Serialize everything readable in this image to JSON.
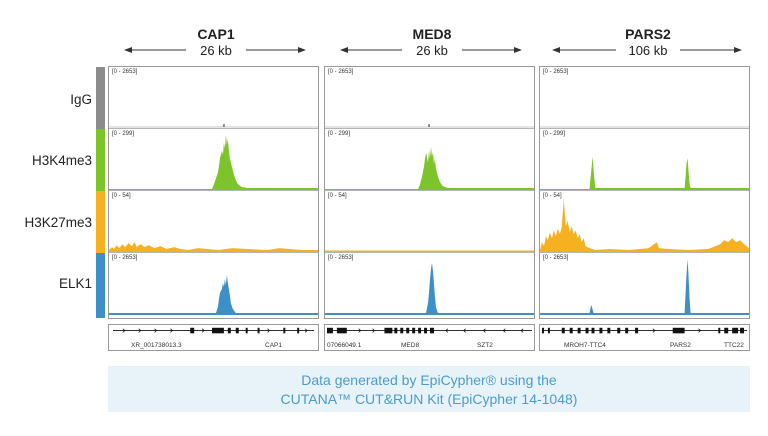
{
  "columns": [
    {
      "gene": "CAP1",
      "size": "26 kb",
      "genes_track": {
        "left_label": "XR_001738013.3",
        "right_label": "CAP1"
      }
    },
    {
      "gene": "MED8",
      "size": "26 kb",
      "genes_track": {
        "left_label": "07066049.1",
        "mid_label": "MED8",
        "right_label": "SZT2"
      }
    },
    {
      "gene": "PARS2",
      "size": "106 kb",
      "genes_track": {
        "left_label": "MROH7-TTC4",
        "mid_label": "PARS2",
        "right_label": "TTC22"
      }
    }
  ],
  "tracks": [
    {
      "label": "IgG",
      "color": "#8c8c8c",
      "scale": "[0 - 2653]"
    },
    {
      "label": "H3K4me3",
      "color": "#7dc42b",
      "scale": "[0 - 299]"
    },
    {
      "label": "H3K27me3",
      "color": "#f5b120",
      "scale": "[0 - 54]"
    },
    {
      "label": "ELK1",
      "color": "#3d8fc7",
      "scale": "[0 - 2653]"
    }
  ],
  "footer": {
    "line1": "Data generated by EpiCypher® using the",
    "line2": "CUTANA™ CUT&RUN Kit (EpiCypher 14-1048)"
  }
}
